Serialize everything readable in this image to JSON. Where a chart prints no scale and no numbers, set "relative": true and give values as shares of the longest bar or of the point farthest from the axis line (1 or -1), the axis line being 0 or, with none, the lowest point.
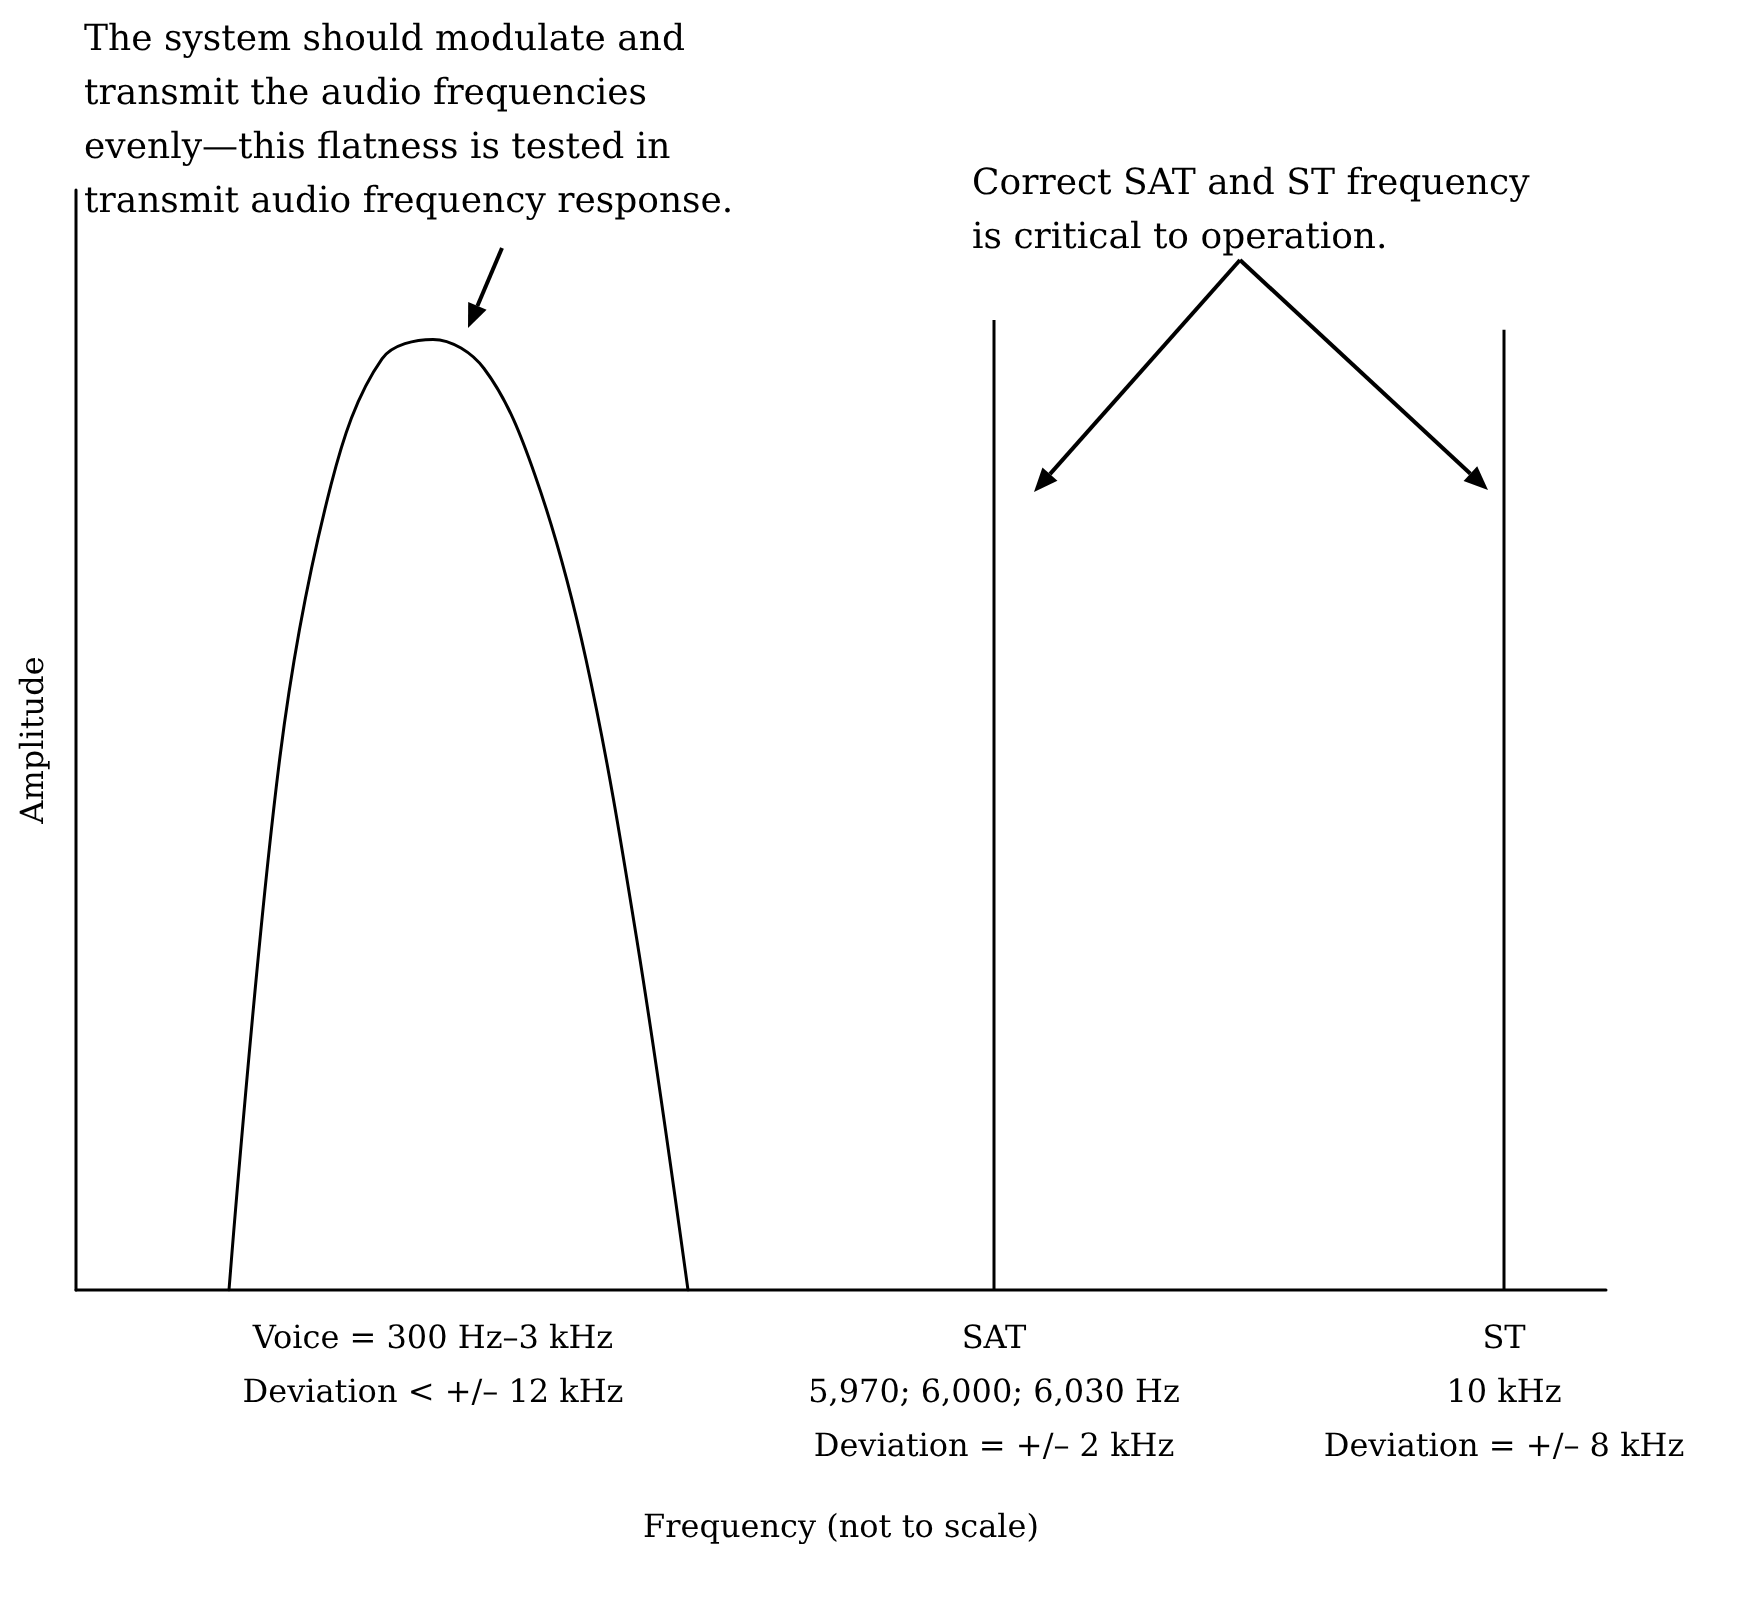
{
  "chart_data": {
    "type": "line",
    "relative": true,
    "xlabel": "Frequency (not to scale)",
    "ylabel": "Amplitude",
    "categories": [
      null,
      null,
      null,
      null,
      null,
      null,
      null,
      "Voice = 300 Hz–3 kHz\nDeviation < +/– 12 kHz",
      null,
      null,
      null,
      null,
      null,
      null,
      null,
      null,
      null,
      null,
      "SAT\n5,970; 6,000; 6,030 Hz\nDeviation = +/– 2 kHz",
      null,
      null,
      null,
      null,
      null,
      null,
      null,
      null,
      null,
      "ST\n10 kHz\nDeviation = +/– 8 kHz",
      null,
      null
    ],
    "series": [
      {
        "color": "#000000",
        "values": [
          null,
          null,
          null,
          0,
          0.55,
          0.83,
          0.96,
          0.98,
          0.95,
          0.84,
          0.65,
          0.36,
          0,
          null,
          null,
          null,
          null,
          null,
          null,
          null,
          null,
          null,
          null,
          null,
          null,
          null,
          null,
          null,
          null,
          null,
          null
        ]
      },
      {
        "type": "bar",
        "color": "#000000",
        "values": [
          null,
          null,
          null,
          null,
          null,
          null,
          null,
          null,
          null,
          null,
          null,
          null,
          null,
          null,
          null,
          null,
          null,
          null,
          1,
          null,
          null,
          null,
          null,
          null,
          null,
          null,
          null,
          null,
          0.99,
          null,
          null
        ]
      }
    ],
    "annotations": [
      "The system should modulate and\ntransmit the audio frequencies\nevenly—this flatness is tested in\ntransmit audio frequency response.",
      "Correct SAT and ST frequency\nis critical to operation."
    ],
    "grid": false,
    "marker": "none",
    "line_style": "solid"
  }
}
